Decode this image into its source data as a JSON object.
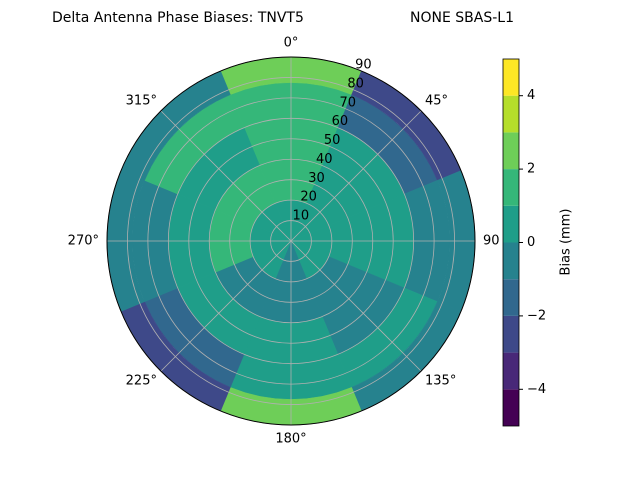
{
  "chart_data": {
    "type": "polar-contour",
    "title": "Delta Antenna Phase Biases: TNVT5",
    "subtitle": "NONE SBAS-L1",
    "azimuth": [
      0,
      45,
      90,
      135,
      180,
      225,
      270,
      315
    ],
    "radius": [
      10,
      30,
      50,
      70,
      85
    ],
    "values": [
      [
        0.5,
        1.5,
        1.5,
        1.5,
        2.5
      ],
      [
        0.5,
        0.5,
        0.5,
        -1.5,
        -2.5
      ],
      [
        0.5,
        0.5,
        0.5,
        -0.5,
        -0.5
      ],
      [
        0.5,
        -0.5,
        -0.5,
        0.5,
        -0.5
      ],
      [
        -0.5,
        -0.5,
        0.5,
        0.5,
        2.5
      ],
      [
        0.5,
        -0.5,
        0.5,
        -1.5,
        -2.5
      ],
      [
        0.5,
        1.5,
        0.5,
        -0.5,
        -0.5
      ],
      [
        0.5,
        1.5,
        0.5,
        1.5,
        -0.5
      ]
    ],
    "rlim": [
      0,
      90
    ],
    "rticks": [
      10,
      20,
      30,
      40,
      50,
      60,
      70,
      80,
      90
    ],
    "thetaticks": [
      {
        "value": 0,
        "label": "0°"
      },
      {
        "value": 45,
        "label": "45°"
      },
      90,
      {
        "value": 135,
        "label": "135°"
      },
      {
        "value": 180,
        "label": "180°"
      },
      {
        "value": 225,
        "label": "225°"
      },
      {
        "value": 270,
        "label": "270°"
      },
      {
        "value": 315,
        "label": "315°"
      }
    ],
    "grid": true,
    "levels": [
      -5,
      -4,
      -3,
      -2,
      -1,
      0,
      1,
      2,
      3,
      4,
      5
    ],
    "colors": [
      "#440154",
      "#482878",
      "#3e4989",
      "#31688e",
      "#26828e",
      "#1f9e89",
      "#35b779",
      "#6ece58",
      "#b5de2b",
      "#fde725"
    ],
    "colorbar_label": "Bias (mm)",
    "colorbar_ticks": [
      {
        "value": -4,
        "label": "−4"
      },
      {
        "value": -2,
        "label": "−2"
      },
      0,
      2,
      4
    ]
  }
}
